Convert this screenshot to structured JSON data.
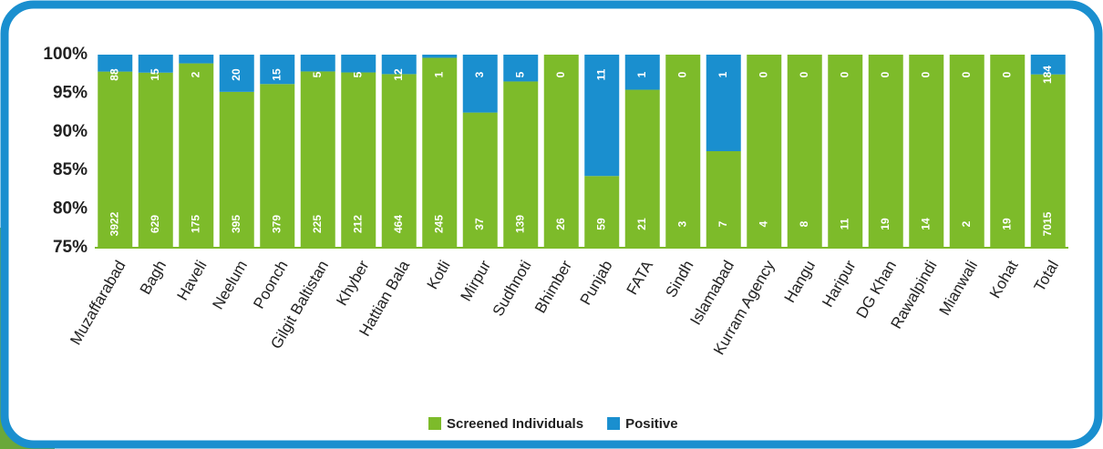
{
  "chart_data": {
    "type": "bar",
    "stacking": "percent",
    "categories": [
      "Muzaffarabad",
      "Bagh",
      "Haveli",
      "Neelum",
      "Poonch",
      "Gilgit Baltistan",
      "Khyber",
      "Hattian Bala",
      "Kotli",
      "Mirpur",
      "Sudhnoti",
      "Bhimber",
      "Punjab",
      "FATA",
      "Sindh",
      "Islamabad",
      "Kurram Agency",
      "Hangu",
      "Haripur",
      "DG Khan",
      "Rawalpindi",
      "Mianwali",
      "Kohat",
      "Total"
    ],
    "series": [
      {
        "name": "Screened Individuals",
        "color": "#7dbb2a",
        "values": [
          3922,
          629,
          175,
          395,
          379,
          225,
          212,
          464,
          245,
          37,
          139,
          26,
          59,
          21,
          3,
          7,
          4,
          8,
          11,
          19,
          14,
          2,
          19,
          7015
        ]
      },
      {
        "name": "Positive",
        "color": "#1a8fcf",
        "values": [
          88,
          15,
          2,
          20,
          15,
          5,
          5,
          12,
          1,
          3,
          5,
          0,
          11,
          1,
          0,
          1,
          0,
          0,
          0,
          0,
          0,
          0,
          0,
          184
        ]
      }
    ],
    "ylim": [
      75,
      100
    ],
    "yticks": [
      {
        "value": 75,
        "label": "75%"
      },
      {
        "value": 80,
        "label": "80%"
      },
      {
        "value": 85,
        "label": "85%"
      },
      {
        "value": 90,
        "label": "90%"
      },
      {
        "value": 95,
        "label": "95%"
      },
      {
        "value": 100,
        "label": "100%"
      }
    ],
    "legend": "bottom"
  }
}
